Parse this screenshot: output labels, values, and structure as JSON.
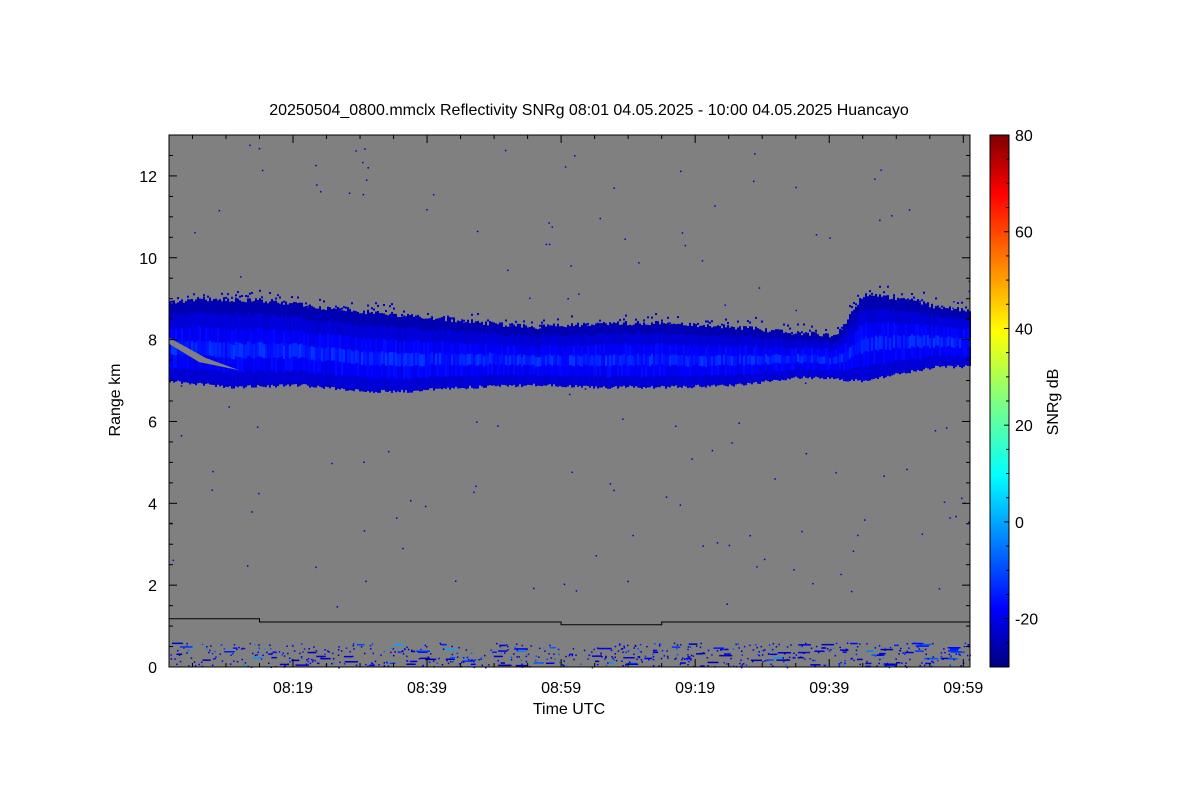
{
  "chart_data": {
    "type": "heatmap",
    "title": "20250504_0800.mmclx Reflectivity SNRg   08:01 04.05.2025 - 10:00 04.05.2025 Huancayo",
    "xlabel": "Time UTC",
    "ylabel": "Range km",
    "x_ticks": [
      "08:19",
      "08:39",
      "08:59",
      "09:19",
      "09:39",
      "09:59"
    ],
    "x_tick_minutes": [
      19,
      39,
      59,
      79,
      99,
      119
    ],
    "xlim_minutes": [
      0.5,
      120
    ],
    "y_ticks": [
      "0",
      "2",
      "4",
      "6",
      "8",
      "10",
      "12"
    ],
    "y_tick_values": [
      0,
      2,
      4,
      6,
      8,
      10,
      12
    ],
    "ylim": [
      0,
      13
    ],
    "colorbar": {
      "label": "SNRg dB",
      "ticks": [
        "-20",
        "0",
        "20",
        "40",
        "60",
        "80"
      ],
      "tick_values": [
        -20,
        0,
        20,
        40,
        60,
        80
      ],
      "range": [
        -30,
        80
      ],
      "colormap": "jet"
    },
    "background_color": "#808080",
    "grid": false,
    "cloud_layer": {
      "name": "cloud",
      "base_km": [
        [
          0.5,
          7.0
        ],
        [
          10,
          6.85
        ],
        [
          20,
          6.9
        ],
        [
          30,
          6.75
        ],
        [
          36,
          6.75
        ],
        [
          45,
          6.85
        ],
        [
          55,
          6.9
        ],
        [
          65,
          6.85
        ],
        [
          75,
          6.85
        ],
        [
          85,
          6.9
        ],
        [
          95,
          7.1
        ],
        [
          104,
          7.0
        ],
        [
          110,
          7.2
        ],
        [
          115,
          7.35
        ],
        [
          120,
          7.35
        ]
      ],
      "top_km": [
        [
          0.5,
          8.9
        ],
        [
          5,
          9.0
        ],
        [
          15,
          8.95
        ],
        [
          25,
          8.75
        ],
        [
          35,
          8.6
        ],
        [
          45,
          8.45
        ],
        [
          55,
          8.3
        ],
        [
          65,
          8.4
        ],
        [
          75,
          8.4
        ],
        [
          85,
          8.3
        ],
        [
          95,
          8.15
        ],
        [
          100,
          8.1
        ],
        [
          104,
          9.1
        ],
        [
          110,
          9.0
        ],
        [
          115,
          8.8
        ],
        [
          120,
          8.7
        ]
      ],
      "snr_db_range": [
        -25,
        -10
      ]
    },
    "ground_clutter": {
      "name": "near-surface echoes",
      "top_km": 0.6,
      "snr_db_range": [
        -25,
        5
      ]
    },
    "reference_line": {
      "name": "line",
      "color": "#000000",
      "points_km": [
        [
          0.5,
          1.18
        ],
        [
          14,
          1.18
        ],
        [
          14,
          1.1
        ],
        [
          59,
          1.1
        ],
        [
          59,
          1.03
        ],
        [
          74,
          1.03
        ],
        [
          74,
          1.1
        ],
        [
          120,
          1.1
        ]
      ]
    }
  }
}
